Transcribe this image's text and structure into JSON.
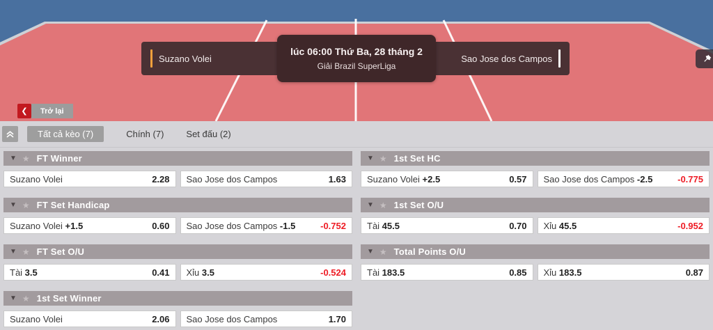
{
  "hero": {
    "home_team": "Suzano Volei",
    "away_team": "Sao Jose dos Campos",
    "match_time": "lúc 06:00 Thứ Ba, 28 tháng 2",
    "league": "Giải Brazil SuperLiga"
  },
  "back_button": {
    "chevron": "❮",
    "label": "Trở lại"
  },
  "tabs": [
    {
      "label": "Tất cả kèo (7)",
      "active": true
    },
    {
      "label": "Chính (7)",
      "active": false
    },
    {
      "label": "Set đấu (2)",
      "active": false
    }
  ],
  "icons": {
    "pin": "pushpin-icon",
    "back": "chevron-left-icon",
    "collapse": "double-chevron-up-icon",
    "market_caret": "caret-down-icon",
    "market_star": "star-icon"
  },
  "colors": {
    "sky_blue": "#49709f",
    "court_red": "#e17578",
    "bar_maroon": "#4a3134",
    "accent_orange": "#f5a03c",
    "back_red": "#c2191f",
    "header_gray": "#a29b9e",
    "odds_negative_red": "#ee1c25"
  },
  "markets": {
    "left": [
      {
        "title": "FT Winner",
        "selections": [
          {
            "name": "Suzano Volei",
            "line": "",
            "odds": "2.28",
            "negative": false
          },
          {
            "name": "Sao Jose dos Campos",
            "line": "",
            "odds": "1.63",
            "negative": false
          }
        ]
      },
      {
        "title": "FT Set Handicap",
        "selections": [
          {
            "name": "Suzano Volei",
            "line": "+1.5",
            "odds": "0.60",
            "negative": false
          },
          {
            "name": "Sao Jose dos Campos",
            "line": "-1.5",
            "odds": "-0.752",
            "negative": true
          }
        ]
      },
      {
        "title": "FT Set O/U",
        "selections": [
          {
            "name": "Tài",
            "line": "3.5",
            "odds": "0.41",
            "negative": false
          },
          {
            "name": "Xỉu",
            "line": "3.5",
            "odds": "-0.524",
            "negative": true
          }
        ]
      },
      {
        "title": "1st Set Winner",
        "selections": [
          {
            "name": "Suzano Volei",
            "line": "",
            "odds": "2.06",
            "negative": false
          },
          {
            "name": "Sao Jose dos Campos",
            "line": "",
            "odds": "1.70",
            "negative": false
          }
        ]
      }
    ],
    "right": [
      {
        "title": "1st Set HC",
        "selections": [
          {
            "name": "Suzano Volei",
            "line": "+2.5",
            "odds": "0.57",
            "negative": false
          },
          {
            "name": "Sao Jose dos Campos",
            "line": "-2.5",
            "odds": "-0.775",
            "negative": true
          }
        ]
      },
      {
        "title": "1st Set O/U",
        "selections": [
          {
            "name": "Tài",
            "line": "45.5",
            "odds": "0.70",
            "negative": false
          },
          {
            "name": "Xỉu",
            "line": "45.5",
            "odds": "-0.952",
            "negative": true
          }
        ]
      },
      {
        "title": "Total Points O/U",
        "selections": [
          {
            "name": "Tài",
            "line": "183.5",
            "odds": "0.85",
            "negative": false
          },
          {
            "name": "Xỉu",
            "line": "183.5",
            "odds": "0.87",
            "negative": false
          }
        ]
      }
    ]
  }
}
